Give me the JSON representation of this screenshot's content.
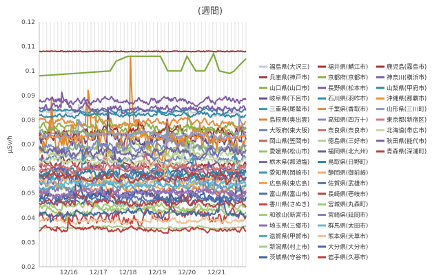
{
  "chart_data": {
    "type": "line",
    "title": "(週間)",
    "ylabel": "μSv/h",
    "ylim": [
      0.02,
      0.12
    ],
    "yticks": [
      "0.02",
      "0.03",
      "0.04",
      "0.05",
      "0.06",
      "0.07",
      "0.08",
      "0.09",
      "0.1",
      "0.11",
      "0.12"
    ],
    "xlim": [
      0,
      7
    ],
    "xticks": [
      {
        "x": 1,
        "label": "12/16"
      },
      {
        "x": 2,
        "label": "12/17"
      },
      {
        "x": 3,
        "label": "12/18"
      },
      {
        "x": 4,
        "label": "12/19"
      },
      {
        "x": 5,
        "label": "12/20"
      },
      {
        "x": 6,
        "label": "12/21"
      }
    ],
    "grid": "vertical",
    "legend_position": "right",
    "series": [
      {
        "name": "福島県(大沢三)",
        "color": "#c9c9d6",
        "base": 0.083,
        "amp": 0.002,
        "pattern": "noisy"
      },
      {
        "name": "兵庫県(神戸市)",
        "color": "#9f3b3b",
        "base": 0.062,
        "amp": 0.003,
        "pattern": "noisy"
      },
      {
        "name": "山口県(山口市)",
        "color": "#8fb24a",
        "base": 0.077,
        "amp": 0.003,
        "pattern": "noisy"
      },
      {
        "name": "岐阜県(下呂市)",
        "color": "#6a4b8c",
        "base": 0.072,
        "amp": 0.006,
        "pattern": "noisy"
      },
      {
        "name": "三重県(尾鷲市)",
        "color": "#3a9bb5",
        "base": 0.056,
        "amp": 0.003,
        "pattern": "noisy"
      },
      {
        "name": "島根県(奥出雲)",
        "color": "#e08a30",
        "base": 0.071,
        "amp": 0.012,
        "pattern": "noisy"
      },
      {
        "name": "大阪府(東大阪)",
        "color": "#6d86b8",
        "base": 0.064,
        "amp": 0.003,
        "pattern": "noisy"
      },
      {
        "name": "岡山県(笠岡市)",
        "color": "#c46060",
        "base": 0.05,
        "amp": 0.003,
        "pattern": "noisy"
      },
      {
        "name": "愛媛県(松山市)",
        "color": "#9cc16a",
        "base": 0.068,
        "amp": 0.003,
        "pattern": "noisy"
      },
      {
        "name": "栃木県(那須塩)",
        "color": "#7d66a8",
        "base": 0.056,
        "amp": 0.004,
        "pattern": "noisy"
      },
      {
        "name": "愛知県(岡崎市)",
        "color": "#3e95ad",
        "base": 0.058,
        "amp": 0.004,
        "pattern": "noisy"
      },
      {
        "name": "広島県(東広島)",
        "color": "#f0a050",
        "base": 0.052,
        "amp": 0.003,
        "pattern": "noisy"
      },
      {
        "name": "富山県(富山市)",
        "color": "#4a6fb0",
        "base": 0.047,
        "amp": 0.003,
        "pattern": "noisy"
      },
      {
        "name": "香川県(さぬき)",
        "color": "#c04848",
        "base": 0.04,
        "amp": 0.005,
        "pattern": "noisy"
      },
      {
        "name": "和歌山(新宮市)",
        "color": "#a8c878",
        "base": 0.045,
        "amp": 0.003,
        "pattern": "noisy"
      },
      {
        "name": "埼玉県(三郷市)",
        "color": "#8a70b8",
        "base": 0.051,
        "amp": 0.003,
        "pattern": "noisy"
      },
      {
        "name": "滋賀県(甲賀市)",
        "color": "#50a8c0",
        "base": 0.053,
        "amp": 0.003,
        "pattern": "noisy"
      },
      {
        "name": "新潟県(村上市)",
        "color": "#a4cc88",
        "base": 0.036,
        "amp": 0.001,
        "pattern": "noisy"
      },
      {
        "name": "茨城県(守谷市)",
        "color": "#3c5f9e",
        "base": 0.049,
        "amp": 0.004,
        "pattern": "noisy"
      },
      {
        "name": "福井県(鯖江市)",
        "color": "#b03030",
        "base": 0.075,
        "amp": 0.004,
        "pattern": "noisy"
      },
      {
        "name": "京都府(京都市)",
        "color": "#8cae50",
        "base": 0.075,
        "amp": 0.003,
        "pattern": "noisy"
      },
      {
        "name": "長野県(松本市)",
        "color": "#7c5ca4",
        "base": 0.088,
        "amp": 0.003,
        "pattern": "noisy"
      },
      {
        "name": "石川県(羽咋市)",
        "color": "#2f8ca8",
        "base": 0.084,
        "amp": 0.0015,
        "pattern": "noisy"
      },
      {
        "name": "千葉県(香取市)",
        "color": "#e58c3c",
        "base": 0.079,
        "amp": 0.003,
        "pattern": "noisy"
      },
      {
        "name": "高知県(四万十)",
        "color": "#7a8fbf",
        "base": 0.069,
        "amp": 0.004,
        "pattern": "noisy"
      },
      {
        "name": "奈良県(奈良市)",
        "color": "#cf6d6d",
        "base": 0.061,
        "amp": 0.003,
        "pattern": "noisy"
      },
      {
        "name": "徳島県(三好市)",
        "color": "#b6d08c",
        "base": 0.066,
        "amp": 0.003,
        "pattern": "noisy"
      },
      {
        "name": "福岡県(北九州)",
        "color": "#6b58a0",
        "base": 0.059,
        "amp": 0.003,
        "pattern": "noisy"
      },
      {
        "name": "鳥取県(日野町)",
        "color": "#2a85a0",
        "base": 0.058,
        "amp": 0.003,
        "pattern": "noisy"
      },
      {
        "name": "静岡県(御前崎)",
        "color": "#f0b070",
        "base": 0.055,
        "amp": 0.003,
        "pattern": "noisy"
      },
      {
        "name": "佐賀県(武雄市)",
        "color": "#5577aa",
        "base": 0.048,
        "amp": 0.003,
        "pattern": "noisy"
      },
      {
        "name": "長崎県(壱岐市)",
        "color": "#b84444",
        "base": 0.046,
        "amp": 0.003,
        "pattern": "noisy"
      },
      {
        "name": "宮城県(丸森町)",
        "color": "#9cc870",
        "base": 0.043,
        "amp": 0.003,
        "pattern": "noisy"
      },
      {
        "name": "宮崎県(延岡市)",
        "color": "#9078c0",
        "base": 0.05,
        "amp": 0.003,
        "pattern": "noisy"
      },
      {
        "name": "群馬県(太田市)",
        "color": "#68b8d0",
        "base": 0.054,
        "amp": 0.003,
        "pattern": "noisy"
      },
      {
        "name": "熊本県(天草市)",
        "color": "#f4c090",
        "base": 0.039,
        "amp": 0.002,
        "pattern": "noisy"
      },
      {
        "name": "大分県(大分市)",
        "color": "#4468a8",
        "base": 0.042,
        "amp": 0.003,
        "pattern": "noisy"
      },
      {
        "name": "岩手県(久慈市)",
        "color": "#c03c3c",
        "base": 0.035,
        "amp": 0.002,
        "pattern": "noisy"
      },
      {
        "name": "鹿児島(霧島市)",
        "color": "#a83232",
        "base": 0.108,
        "amp": 0.0004,
        "pattern": "flat"
      },
      {
        "name": "神奈川(横浜市)",
        "color": "#7e5aa8",
        "base": 0.085,
        "amp": 0.003,
        "pattern": "noisy"
      },
      {
        "name": "山梨県(甲府市)",
        "color": "#2e89a6",
        "base": 0.082,
        "amp": 0.002,
        "pattern": "noisy"
      },
      {
        "name": "沖縄県(那覇市)",
        "color": "#ef8f35",
        "base": 0.073,
        "amp": 0.003,
        "pattern": "noisy"
      },
      {
        "name": "山形県(三川町)",
        "color": "#8d9cc6",
        "base": 0.074,
        "amp": 0.003,
        "pattern": "noisy"
      },
      {
        "name": "東京都(新宿区)",
        "color": "#d27a7a",
        "base": 0.06,
        "amp": 0.003,
        "pattern": "noisy"
      },
      {
        "name": "北海道(帯広市)",
        "color": "#c2d9a4",
        "base": 0.063,
        "amp": 0.003,
        "pattern": "noisy"
      },
      {
        "name": "秋田県(能代市)",
        "color": "#7464a8",
        "base": 0.067,
        "amp": 0.004,
        "pattern": "noisy"
      },
      {
        "name": "青森県(深浦町)",
        "color": "#b54141",
        "base": 0.057,
        "amp": 0.003,
        "pattern": "noisy"
      }
    ],
    "highlight_series": {
      "name": "",
      "color": "#7faa3a",
      "base": 0.099,
      "steps": [
        [
          0,
          0.098
        ],
        [
          1.2,
          0.099
        ],
        [
          2.4,
          0.1
        ],
        [
          2.6,
          0.104
        ],
        [
          3.0,
          0.106
        ],
        [
          4.1,
          0.106
        ],
        [
          4.35,
          0.1
        ],
        [
          4.8,
          0.1
        ],
        [
          5.0,
          0.106
        ],
        [
          5.3,
          0.1
        ],
        [
          5.6,
          0.1
        ],
        [
          5.9,
          0.107
        ],
        [
          6.1,
          0.1
        ],
        [
          6.45,
          0.099
        ],
        [
          6.6,
          0.1
        ],
        [
          6.75,
          0.102
        ],
        [
          7,
          0.105
        ]
      ]
    }
  }
}
